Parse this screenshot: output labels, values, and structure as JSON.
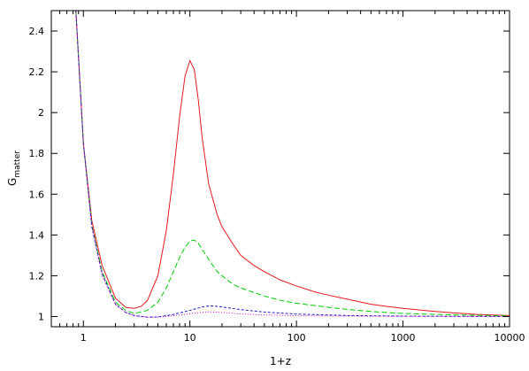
{
  "chart_data": {
    "type": "line",
    "title": "",
    "xlabel": "1+z",
    "ylabel": {
      "main": "G",
      "sub": "matter"
    },
    "x_scale": "log",
    "xlim": [
      0.5,
      10000
    ],
    "ylim": [
      0.95,
      2.5
    ],
    "x_ticks": [
      1,
      10,
      100,
      1000,
      10000
    ],
    "x_tick_labels": [
      "1",
      "10",
      "100",
      "1000",
      "10000"
    ],
    "y_ticks": [
      1,
      1.2,
      1.4,
      1.6,
      1.8,
      2,
      2.2,
      2.4
    ],
    "y_tick_labels": [
      "1",
      "1.2",
      "1.4",
      "1.6",
      "1.8",
      "2",
      "2.2",
      "2.4"
    ],
    "grid": false,
    "legend": "none",
    "series": [
      {
        "color": "#e41a1c",
        "dash": "solid",
        "x": [
          0.75,
          0.85,
          1,
          1.2,
          1.5,
          2,
          2.5,
          3,
          3.5,
          4,
          5,
          6,
          7,
          8,
          9,
          10,
          11,
          12,
          13,
          15,
          18,
          20,
          25,
          30,
          40,
          50,
          70,
          100,
          150,
          200,
          300,
          500,
          700,
          1000,
          2000,
          3000,
          5000,
          10000
        ],
        "y": [
          3.0,
          2.5,
          1.85,
          1.47,
          1.25,
          1.09,
          1.045,
          1.04,
          1.05,
          1.08,
          1.2,
          1.42,
          1.7,
          1.98,
          2.18,
          2.255,
          2.21,
          2.06,
          1.88,
          1.65,
          1.5,
          1.44,
          1.36,
          1.3,
          1.25,
          1.22,
          1.18,
          1.15,
          1.12,
          1.105,
          1.085,
          1.06,
          1.05,
          1.04,
          1.025,
          1.018,
          1.01,
          1.005
        ]
      },
      {
        "color": "#00cc00",
        "dash": "6,3",
        "x": [
          0.75,
          0.85,
          1,
          1.2,
          1.5,
          2,
          2.5,
          3,
          4,
          5,
          6,
          7,
          8,
          9,
          10,
          11,
          12,
          13,
          15,
          18,
          20,
          25,
          30,
          50,
          70,
          100,
          200,
          300,
          500,
          1000,
          3000,
          10000
        ],
        "y": [
          3.0,
          2.5,
          1.85,
          1.45,
          1.22,
          1.07,
          1.03,
          1.015,
          1.03,
          1.07,
          1.14,
          1.22,
          1.29,
          1.34,
          1.37,
          1.375,
          1.36,
          1.33,
          1.28,
          1.22,
          1.2,
          1.16,
          1.14,
          1.1,
          1.08,
          1.065,
          1.045,
          1.035,
          1.025,
          1.015,
          1.008,
          1.003
        ]
      },
      {
        "color": "#1f1fbf",
        "dash": "3,2",
        "x": [
          0.75,
          0.85,
          1,
          1.2,
          1.5,
          2,
          2.5,
          3,
          4,
          5,
          7,
          10,
          12,
          14,
          16,
          18,
          20,
          25,
          30,
          50,
          100,
          300,
          1000,
          10000
        ],
        "y": [
          3.0,
          2.5,
          1.85,
          1.44,
          1.21,
          1.06,
          1.02,
          1.005,
          0.997,
          0.998,
          1.01,
          1.03,
          1.042,
          1.05,
          1.052,
          1.05,
          1.047,
          1.04,
          1.034,
          1.022,
          1.012,
          1.005,
          1.002,
          1.0
        ]
      },
      {
        "color": "#cc00cc",
        "dash": "1,2",
        "x": [
          0.75,
          0.85,
          1,
          1.2,
          1.5,
          2,
          2.5,
          3,
          4,
          5,
          7,
          10,
          13,
          15,
          17,
          20,
          25,
          30,
          50,
          100,
          300,
          1000,
          10000
        ],
        "y": [
          3.0,
          2.5,
          1.85,
          1.44,
          1.2,
          1.06,
          1.02,
          1.003,
          0.996,
          0.997,
          1.004,
          1.014,
          1.021,
          1.023,
          1.022,
          1.02,
          1.016,
          1.013,
          1.008,
          1.004,
          1.002,
          1.001,
          1.0
        ]
      }
    ]
  }
}
